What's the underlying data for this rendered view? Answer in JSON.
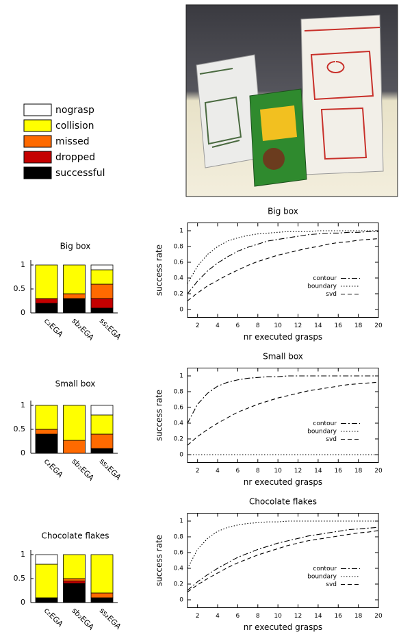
{
  "legend": [
    {
      "name": "nograsp",
      "color": "#ffffff"
    },
    {
      "name": "collision",
      "color": "#ffff00"
    },
    {
      "name": "missed",
      "color": "#ff6a00"
    },
    {
      "name": "dropped",
      "color": "#c40000"
    },
    {
      "name": "successful",
      "color": "#000000"
    }
  ],
  "chart_data": [
    {
      "type": "stacked_bar",
      "title": "Big box",
      "categories": [
        "c₂EGA",
        "sb₂EGA",
        "ss₂EGA"
      ],
      "ylim": [
        0,
        1.1
      ],
      "yticks": [
        0,
        0.5,
        1
      ],
      "series": [
        {
          "values": [
            0,
            0,
            0.1
          ]
        },
        {
          "values": [
            0.7,
            0.6,
            0.3
          ]
        },
        {
          "values": [
            0,
            0.1,
            0.3
          ]
        },
        {
          "values": [
            0.1,
            0,
            0.2
          ]
        },
        {
          "values": [
            0.2,
            0.3,
            0.1
          ]
        }
      ]
    },
    {
      "type": "stacked_bar",
      "title": "Small box",
      "categories": [
        "c₂EGA",
        "sb₂EGA",
        "ss₂EGA"
      ],
      "ylim": [
        0,
        1.1
      ],
      "yticks": [
        0,
        0.5,
        1
      ],
      "series": [
        {
          "values": [
            0,
            0,
            0.2
          ]
        },
        {
          "values": [
            0.5,
            0.73,
            0.4
          ]
        },
        {
          "values": [
            0.1,
            0.27,
            0.3
          ]
        },
        {
          "values": [
            0,
            0,
            0
          ]
        },
        {
          "values": [
            0.4,
            0,
            0.1
          ]
        }
      ]
    },
    {
      "type": "stacked_bar",
      "title": "Chocolate flakes",
      "categories": [
        "c₂EGA",
        "sb₂EGA",
        "ss₂EGA"
      ],
      "ylim": [
        0,
        1.1
      ],
      "yticks": [
        0,
        0.5,
        1
      ],
      "series": [
        {
          "values": [
            0.2,
            0,
            0
          ]
        },
        {
          "values": [
            0.7,
            0.5,
            0.8
          ]
        },
        {
          "values": [
            0,
            0.05,
            0.1
          ]
        },
        {
          "values": [
            0,
            0.05,
            0
          ]
        },
        {
          "values": [
            0.1,
            0.4,
            0.1
          ]
        }
      ]
    },
    {
      "type": "line",
      "title": "Big box",
      "xlabel": "nr executed grasps",
      "ylabel": "success rate",
      "xlim": [
        1,
        20
      ],
      "ylim": [
        -0.1,
        1.1
      ],
      "xticks": [
        2,
        4,
        6,
        8,
        10,
        12,
        14,
        16,
        18,
        20
      ],
      "yticks": [
        0,
        0.2,
        0.4,
        0.6,
        0.8,
        1
      ],
      "legend_position": "lower right",
      "x": [
        1,
        2,
        3,
        4,
        5,
        6,
        7,
        8,
        9,
        10,
        11,
        12,
        13,
        14,
        15,
        16,
        17,
        18,
        19,
        20
      ],
      "series": [
        {
          "name": "contour",
          "color": "#000000",
          "dash": "dashdot",
          "values": [
            0.2,
            0.36,
            0.49,
            0.59,
            0.67,
            0.74,
            0.79,
            0.83,
            0.87,
            0.89,
            0.91,
            0.93,
            0.95,
            0.96,
            0.97,
            0.97,
            0.98,
            0.98,
            0.99,
            0.99
          ]
        },
        {
          "name": "boundary",
          "color": "#000000",
          "dash": "dotted",
          "values": [
            0.33,
            0.55,
            0.7,
            0.8,
            0.87,
            0.91,
            0.94,
            0.96,
            0.97,
            0.98,
            0.99,
            0.99,
            0.99,
            1,
            1,
            1,
            1,
            1,
            1,
            1
          ]
        },
        {
          "name": "svd",
          "color": "#000000",
          "dash": "dashed",
          "values": [
            0.11,
            0.21,
            0.3,
            0.37,
            0.44,
            0.5,
            0.56,
            0.61,
            0.65,
            0.69,
            0.72,
            0.75,
            0.78,
            0.8,
            0.83,
            0.85,
            0.86,
            0.88,
            0.89,
            0.9
          ]
        }
      ]
    },
    {
      "type": "line",
      "title": "Small box",
      "xlabel": "nr executed grasps",
      "ylabel": "success rate",
      "xlim": [
        1,
        20
      ],
      "ylim": [
        -0.1,
        1.1
      ],
      "xticks": [
        2,
        4,
        6,
        8,
        10,
        12,
        14,
        16,
        18,
        20
      ],
      "yticks": [
        0,
        0.2,
        0.4,
        0.6,
        0.8,
        1
      ],
      "legend_position": "lower right",
      "x": [
        1,
        2,
        3,
        4,
        5,
        6,
        7,
        8,
        9,
        10,
        11,
        12,
        13,
        14,
        15,
        16,
        17,
        18,
        19,
        20
      ],
      "series": [
        {
          "name": "contour",
          "color": "#000000",
          "dash": "dashdot",
          "values": [
            0.4,
            0.64,
            0.78,
            0.87,
            0.92,
            0.95,
            0.97,
            0.98,
            0.99,
            0.99,
            1,
            1,
            1,
            1,
            1,
            1,
            1,
            1,
            1,
            1
          ]
        },
        {
          "name": "boundary",
          "color": "#000000",
          "dash": "dotted",
          "values": [
            0,
            0,
            0,
            0,
            0,
            0,
            0,
            0,
            0,
            0,
            0,
            0,
            0,
            0,
            0,
            0,
            0,
            0,
            0,
            0
          ]
        },
        {
          "name": "svd",
          "color": "#000000",
          "dash": "dashed",
          "values": [
            0.12,
            0.23,
            0.32,
            0.4,
            0.47,
            0.54,
            0.59,
            0.64,
            0.68,
            0.72,
            0.75,
            0.78,
            0.81,
            0.83,
            0.85,
            0.87,
            0.89,
            0.9,
            0.91,
            0.92
          ]
        }
      ]
    },
    {
      "type": "line",
      "title": "Chocolate flakes",
      "xlabel": "nr executed grasps",
      "ylabel": "success rate",
      "xlim": [
        1,
        20
      ],
      "ylim": [
        -0.1,
        1.1
      ],
      "xticks": [
        2,
        4,
        6,
        8,
        10,
        12,
        14,
        16,
        18,
        20
      ],
      "yticks": [
        0,
        0.2,
        0.4,
        0.6,
        0.8,
        1
      ],
      "legend_position": "lower right",
      "x": [
        1,
        2,
        3,
        4,
        5,
        6,
        7,
        8,
        9,
        10,
        11,
        12,
        13,
        14,
        15,
        16,
        17,
        18,
        19,
        20
      ],
      "series": [
        {
          "name": "contour",
          "color": "#000000",
          "dash": "dashdot",
          "values": [
            0.12,
            0.23,
            0.32,
            0.4,
            0.47,
            0.54,
            0.59,
            0.64,
            0.68,
            0.72,
            0.75,
            0.78,
            0.81,
            0.83,
            0.85,
            0.87,
            0.89,
            0.9,
            0.91,
            0.92
          ]
        },
        {
          "name": "boundary",
          "color": "#000000",
          "dash": "dotted",
          "values": [
            0.4,
            0.64,
            0.78,
            0.87,
            0.92,
            0.95,
            0.97,
            0.98,
            0.99,
            0.99,
            1,
            1,
            1,
            1,
            1,
            1,
            1,
            1,
            1,
            1
          ]
        },
        {
          "name": "svd",
          "color": "#000000",
          "dash": "dashed",
          "values": [
            0.1,
            0.19,
            0.27,
            0.34,
            0.41,
            0.47,
            0.52,
            0.57,
            0.61,
            0.65,
            0.69,
            0.72,
            0.75,
            0.77,
            0.79,
            0.81,
            0.83,
            0.85,
            0.86,
            0.88
          ]
        }
      ]
    }
  ]
}
